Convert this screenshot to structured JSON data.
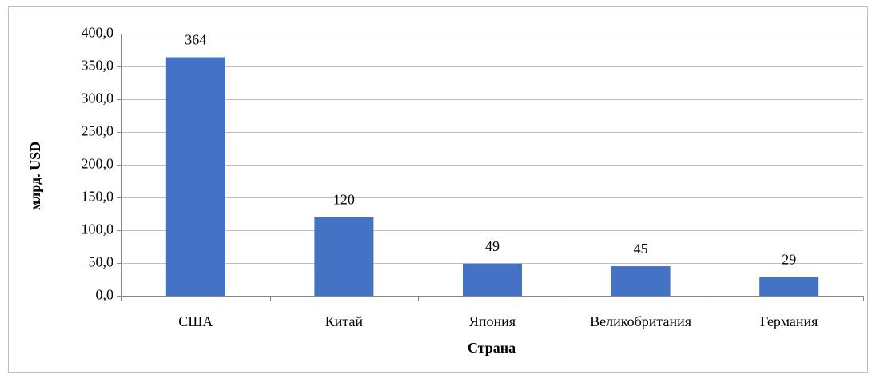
{
  "chart_data": {
    "type": "bar",
    "categories": [
      "США",
      "Китай",
      "Япония",
      "Великобритания",
      "Германия"
    ],
    "values": [
      364,
      120,
      49,
      45,
      29
    ],
    "color": "#4472c4",
    "ylabel": "млрд. USD",
    "xlabel": "Страна",
    "ylim": [
      0,
      400
    ],
    "yticks": [
      {
        "value": 0,
        "label": "0,0"
      },
      {
        "value": 50,
        "label": "50,0"
      },
      {
        "value": 100,
        "label": "100,0"
      },
      {
        "value": 150,
        "label": "150,0"
      },
      {
        "value": 200,
        "label": "200,0"
      },
      {
        "value": 250,
        "label": "250,0"
      },
      {
        "value": 300,
        "label": "300,0"
      },
      {
        "value": 350,
        "label": "350,0"
      },
      {
        "value": 400,
        "label": "400,0"
      }
    ],
    "grid": true
  }
}
